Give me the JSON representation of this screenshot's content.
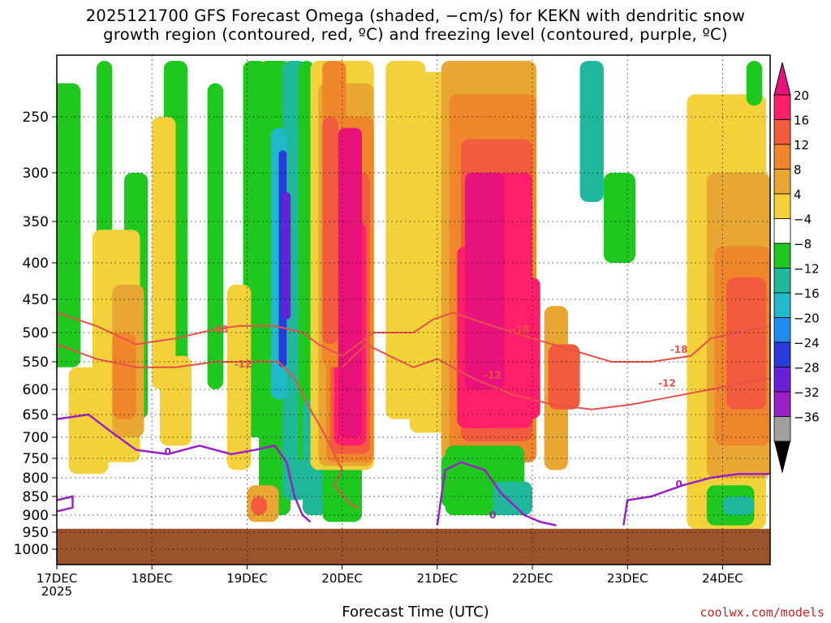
{
  "title": {
    "line1": "2025121700 GFS Forecast Omega (shaded, −cm/s) for KEKN with dendritic snow",
    "line2": "growth region (contoured, red, ºC) and freezing level (contoured, purple, ºC)"
  },
  "credit": "coolwx.com/models",
  "chart_data": {
    "type": "heatmap",
    "xlabel": "Forecast Time (UTC)",
    "x_ticks": [
      {
        "label": "17DEC",
        "sub": "2025",
        "hours": 0
      },
      {
        "label": "18DEC",
        "hours": 24
      },
      {
        "label": "19DEC",
        "hours": 48
      },
      {
        "label": "20DEC",
        "hours": 72
      },
      {
        "label": "21DEC",
        "hours": 96
      },
      {
        "label": "22DEC",
        "hours": 120
      },
      {
        "label": "23DEC",
        "hours": 144
      },
      {
        "label": "24DEC",
        "hours": 168
      }
    ],
    "x_range_hours": [
      0,
      180
    ],
    "y_ticks": [
      "250",
      "300",
      "350",
      "400",
      "450",
      "500",
      "550",
      "600",
      "650",
      "700",
      "750",
      "800",
      "850",
      "900",
      "950",
      "1000"
    ],
    "y_values": [
      250,
      300,
      350,
      400,
      450,
      500,
      550,
      600,
      650,
      700,
      750,
      800,
      850,
      900,
      950,
      1000
    ],
    "y_range_hpa": [
      200,
      1020
    ],
    "colorbar": {
      "labels": [
        "20",
        "16",
        "12",
        "8",
        "4",
        "−4",
        "−8",
        "−12",
        "−16",
        "−20",
        "−24",
        "−28",
        "−32",
        "−36"
      ],
      "colors": [
        "#ff1f6b",
        "#f25b3e",
        "#f0862b",
        "#e8a733",
        "#f2d13b",
        "#ffffff",
        "#1ec81e",
        "#1fb89a",
        "#1fb9c9",
        "#1f8cf0",
        "#2b3bdb",
        "#6a1fd9",
        "#9a20c8",
        "#a0a0a0"
      ],
      "top_color": "#e7137a",
      "bottom_color": "#000000"
    },
    "terrain_color": "#9b532c",
    "terrain_top_hpa": 940,
    "series": [
      {
        "name": "-18",
        "color": "#e8504a"
      },
      {
        "name": "-12",
        "color": "#e8504a"
      },
      {
        "name": "0",
        "color": "#9a20c8"
      }
    ],
    "contour_labels": [
      "-18",
      "-12",
      "-18",
      "-12",
      "-18",
      "-12",
      "0",
      "0",
      "0"
    ]
  }
}
